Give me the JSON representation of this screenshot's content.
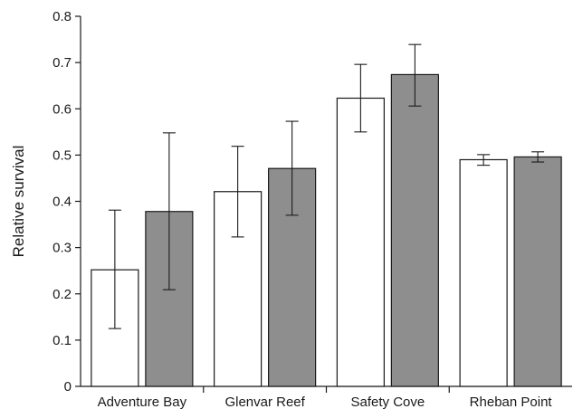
{
  "chart_data": {
    "type": "bar",
    "categories": [
      "Adventure Bay",
      "Glenvar Reef",
      "Safety Cove",
      "Rheban Point"
    ],
    "series": [
      {
        "color": "#ffffff",
        "values": [
          0.252,
          0.421,
          0.623,
          0.49
        ],
        "err_low": [
          0.125,
          0.323,
          0.55,
          0.478
        ],
        "err_high": [
          0.381,
          0.519,
          0.696,
          0.501
        ]
      },
      {
        "color": "#8e8e8e",
        "values": [
          0.378,
          0.471,
          0.674,
          0.496
        ],
        "err_low": [
          0.209,
          0.37,
          0.606,
          0.485
        ],
        "err_high": [
          0.548,
          0.573,
          0.739,
          0.507
        ]
      }
    ],
    "title": "",
    "xlabel": "",
    "ylabel": "Relative survival",
    "ylim": [
      0,
      0.8
    ],
    "yticks": [
      "0",
      "0.1",
      "0.2",
      "0.3",
      "0.4",
      "0.5",
      "0.6",
      "0.7",
      "0.8"
    ],
    "grid": false,
    "legend": "none"
  }
}
